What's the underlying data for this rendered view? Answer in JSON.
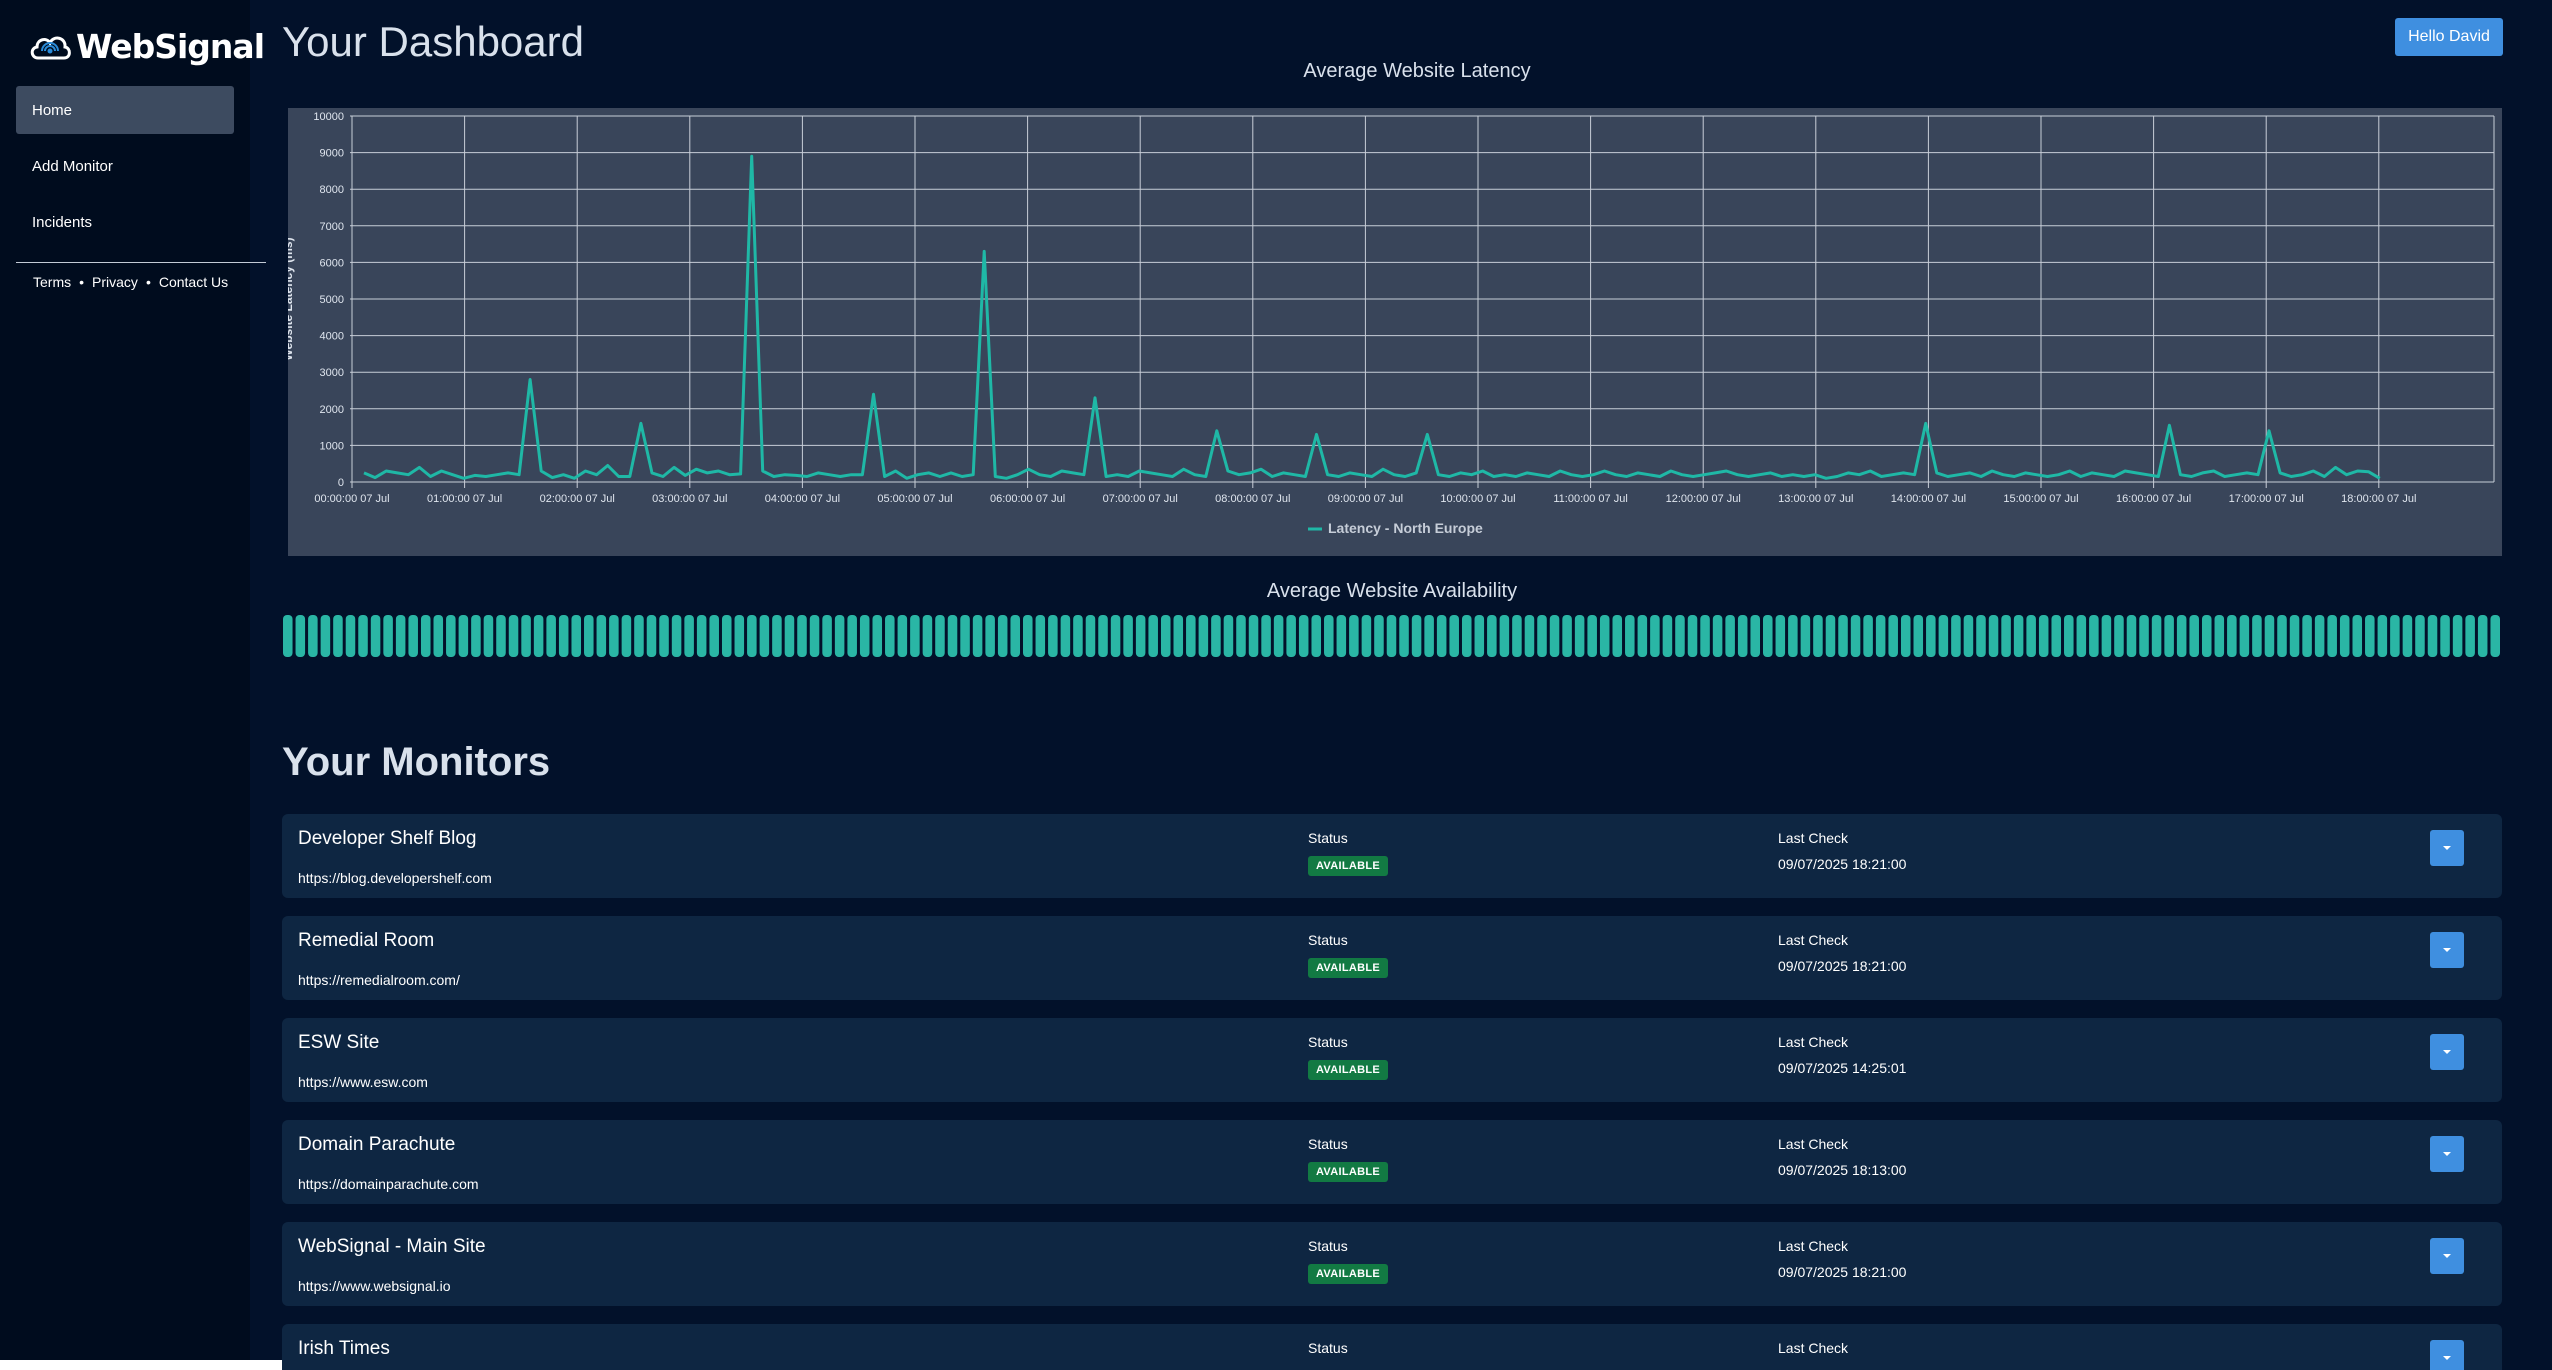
{
  "app": {
    "logo_text": "WebSignal",
    "user_button": "Hello David",
    "page_title": "Your Dashboard"
  },
  "sidebar": {
    "items": [
      {
        "label": "Home",
        "active": true
      },
      {
        "label": "Add Monitor",
        "active": false
      },
      {
        "label": "Incidents",
        "active": false
      }
    ],
    "footer": {
      "terms": "Terms",
      "privacy": "Privacy",
      "contact": "Contact Us",
      "separator": "•"
    }
  },
  "latency_chart": {
    "title": "Average Website Latency",
    "chart_data": {
      "type": "line",
      "ylabel": "Website Latency (ms)",
      "ylim": [
        0,
        10000
      ],
      "yticks": [
        0,
        1000,
        2000,
        3000,
        4000,
        5000,
        6000,
        7000,
        8000,
        9000,
        10000
      ],
      "x_tick_labels": [
        "00:00:00 07 Jul",
        "01:00:00 07 Jul",
        "02:00:00 07 Jul",
        "03:00:00 07 Jul",
        "04:00:00 07 Jul",
        "05:00:00 07 Jul",
        "06:00:00 07 Jul",
        "07:00:00 07 Jul",
        "08:00:00 07 Jul",
        "09:00:00 07 Jul",
        "10:00:00 07 Jul",
        "11:00:00 07 Jul",
        "12:00:00 07 Jul",
        "13:00:00 07 Jul",
        "14:00:00 07 Jul",
        "15:00:00 07 Jul",
        "16:00:00 07 Jul",
        "17:00:00 07 Jul",
        "18:00:00 07 Jul"
      ],
      "series": [
        {
          "name": "Latency - North Europe",
          "color": "#1fb8a6",
          "values": [
            250,
            120,
            300,
            250,
            200,
            400,
            150,
            300,
            200,
            100,
            180,
            150,
            200,
            250,
            200,
            2800,
            300,
            120,
            200,
            100,
            300,
            200,
            450,
            150,
            150,
            1600,
            250,
            150,
            400,
            180,
            350,
            250,
            300,
            200,
            220,
            8900,
            300,
            150,
            200,
            180,
            150,
            250,
            200,
            150,
            200,
            200,
            2400,
            150,
            300,
            100,
            200,
            250,
            150,
            250,
            150,
            200,
            6300,
            150,
            100,
            200,
            350,
            200,
            150,
            300,
            250,
            200,
            2300,
            150,
            200,
            150,
            300,
            250,
            200,
            150,
            350,
            200,
            150,
            1400,
            300,
            200,
            250,
            350,
            150,
            250,
            200,
            150,
            1300,
            200,
            150,
            250,
            200,
            150,
            350,
            200,
            150,
            250,
            1300,
            200,
            150,
            250,
            200,
            300,
            150,
            200,
            150,
            250,
            200,
            150,
            300,
            200,
            150,
            200,
            300,
            200,
            150,
            250,
            200,
            150,
            300,
            200,
            150,
            200,
            250,
            300,
            200,
            150,
            200,
            250,
            150,
            200,
            150,
            200,
            100,
            150,
            250,
            200,
            300,
            150,
            200,
            250,
            200,
            1600,
            250,
            150,
            200,
            250,
            150,
            300,
            200,
            150,
            250,
            200,
            150,
            200,
            300,
            150,
            250,
            200,
            150,
            300,
            250,
            200,
            150,
            1550,
            200,
            150,
            250,
            300,
            150,
            200,
            250,
            200,
            1400,
            250,
            150,
            200,
            300,
            150,
            400,
            200,
            300,
            280,
            100
          ]
        }
      ],
      "legend_position": "bottom",
      "grid": true
    }
  },
  "availability": {
    "title": "Average Website Availability",
    "bar_count": 177,
    "color": "#2ab6a5"
  },
  "monitors_section": {
    "title": "Your Monitors",
    "status_label": "Status",
    "last_check_label": "Last Check",
    "items": [
      {
        "name": "Developer Shelf Blog",
        "url": "https://blog.developershelf.com",
        "status": "AVAILABLE",
        "last_check": "09/07/2025 18:21:00"
      },
      {
        "name": "Remedial Room",
        "url": "https://remedialroom.com/",
        "status": "AVAILABLE",
        "last_check": "09/07/2025 18:21:00"
      },
      {
        "name": "ESW Site",
        "url": "https://www.esw.com",
        "status": "AVAILABLE",
        "last_check": "09/07/2025 14:25:01"
      },
      {
        "name": "Domain Parachute",
        "url": "https://domainparachute.com",
        "status": "AVAILABLE",
        "last_check": "09/07/2025 18:13:00"
      },
      {
        "name": "WebSignal - Main Site",
        "url": "https://www.websignal.io",
        "status": "AVAILABLE",
        "last_check": "09/07/2025 18:21:00"
      },
      {
        "name": "Irish Times",
        "url": "",
        "status": "",
        "last_check": ""
      }
    ]
  }
}
